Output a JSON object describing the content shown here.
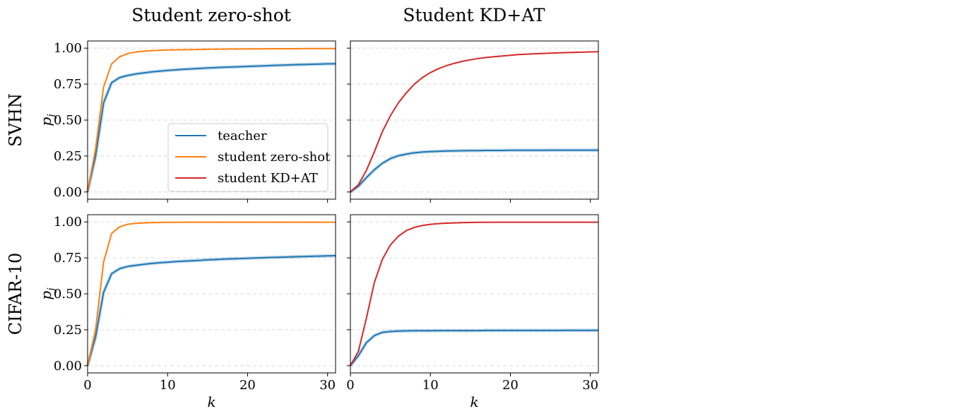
{
  "column_titles": [
    "Student zero-shot",
    "Student KD+AT"
  ],
  "row_labels": [
    "SVHN",
    "CIFAR-10"
  ],
  "legend": [
    {
      "label": "teacher",
      "color": "#1f77b4"
    },
    {
      "label": "student zero-shot",
      "color": "#ff7f0e"
    },
    {
      "label": "student KD+AT",
      "color": "#d62728"
    }
  ],
  "chart_data": [
    {
      "type": "line",
      "panel": "SVHN / Student zero-shot",
      "xlabel": "k",
      "ylabel": "p_j",
      "xlim": [
        0,
        31
      ],
      "ylim": [
        -0.05,
        1.05
      ],
      "xticks": [
        0,
        10,
        20,
        30
      ],
      "yticks": [
        "0.00",
        "0.25",
        "0.50",
        "0.75",
        "1.00"
      ],
      "grid": "horizontal dashed",
      "legend_position": "lower right",
      "x": [
        0,
        1,
        2,
        3,
        4,
        5,
        6,
        7,
        8,
        9,
        10,
        11,
        12,
        13,
        14,
        15,
        16,
        17,
        18,
        19,
        20,
        21,
        22,
        23,
        24,
        25,
        26,
        27,
        28,
        29,
        30,
        31
      ],
      "series": [
        {
          "name": "teacher",
          "color": "#1f77b4",
          "values": [
            0,
            0.25,
            0.62,
            0.76,
            0.795,
            0.81,
            0.82,
            0.828,
            0.835,
            0.84,
            0.845,
            0.849,
            0.853,
            0.856,
            0.859,
            0.862,
            0.865,
            0.867,
            0.869,
            0.871,
            0.873,
            0.875,
            0.877,
            0.879,
            0.881,
            0.883,
            0.885,
            0.886,
            0.888,
            0.889,
            0.891,
            0.892
          ]
        },
        {
          "name": "student zero-shot",
          "color": "#ff7f0e",
          "values": [
            0,
            0.3,
            0.73,
            0.89,
            0.94,
            0.962,
            0.973,
            0.979,
            0.983,
            0.985,
            0.987,
            0.988,
            0.989,
            0.99,
            0.991,
            0.992,
            0.993,
            0.993,
            0.994,
            0.994,
            0.995,
            0.995,
            0.995,
            0.996,
            0.996,
            0.996,
            0.996,
            0.997,
            0.997,
            0.997,
            0.997,
            0.997
          ]
        }
      ]
    },
    {
      "type": "line",
      "panel": "SVHN / Student KD+AT",
      "xlabel": "",
      "ylabel": "",
      "xlim": [
        0,
        31
      ],
      "ylim": [
        -0.05,
        1.05
      ],
      "xticks": [
        0,
        10,
        20,
        30
      ],
      "grid": "horizontal dashed",
      "x": [
        0,
        1,
        2,
        3,
        4,
        5,
        6,
        7,
        8,
        9,
        10,
        11,
        12,
        13,
        14,
        15,
        16,
        17,
        18,
        19,
        20,
        21,
        22,
        23,
        24,
        25,
        26,
        27,
        28,
        29,
        30,
        31
      ],
      "series": [
        {
          "name": "teacher",
          "color": "#1f77b4",
          "values": [
            0,
            0.04,
            0.1,
            0.155,
            0.2,
            0.232,
            0.252,
            0.264,
            0.272,
            0.278,
            0.281,
            0.283,
            0.285,
            0.286,
            0.287,
            0.288,
            0.288,
            0.289,
            0.289,
            0.289,
            0.29,
            0.29,
            0.29,
            0.29,
            0.29,
            0.291,
            0.291,
            0.291,
            0.291,
            0.291,
            0.291,
            0.291
          ]
        },
        {
          "name": "student KD+AT",
          "color": "#d62728",
          "values": [
            0,
            0.05,
            0.15,
            0.28,
            0.42,
            0.53,
            0.62,
            0.69,
            0.75,
            0.795,
            0.83,
            0.857,
            0.878,
            0.895,
            0.908,
            0.919,
            0.928,
            0.935,
            0.941,
            0.946,
            0.951,
            0.955,
            0.958,
            0.961,
            0.963,
            0.965,
            0.967,
            0.969,
            0.971,
            0.972,
            0.974,
            0.975
          ]
        }
      ]
    },
    {
      "type": "line",
      "panel": "CIFAR-10 / Student zero-shot",
      "xlabel": "k",
      "ylabel": "p_j",
      "xlim": [
        0,
        31
      ],
      "ylim": [
        -0.05,
        1.05
      ],
      "xticks": [
        0,
        10,
        20,
        30
      ],
      "yticks": [
        "0.00",
        "0.25",
        "0.50",
        "0.75",
        "1.00"
      ],
      "grid": "horizontal dashed",
      "x": [
        0,
        1,
        2,
        3,
        4,
        5,
        6,
        7,
        8,
        9,
        10,
        11,
        12,
        13,
        14,
        15,
        16,
        17,
        18,
        19,
        20,
        21,
        22,
        23,
        24,
        25,
        26,
        27,
        28,
        29,
        30,
        31
      ],
      "series": [
        {
          "name": "teacher",
          "color": "#1f77b4",
          "values": [
            0,
            0.2,
            0.51,
            0.64,
            0.675,
            0.69,
            0.698,
            0.705,
            0.711,
            0.716,
            0.72,
            0.724,
            0.727,
            0.73,
            0.733,
            0.736,
            0.738,
            0.741,
            0.743,
            0.745,
            0.747,
            0.749,
            0.751,
            0.753,
            0.754,
            0.756,
            0.758,
            0.759,
            0.761,
            0.762,
            0.764,
            0.765
          ]
        },
        {
          "name": "student zero-shot",
          "color": "#ff7f0e",
          "values": [
            0,
            0.25,
            0.72,
            0.92,
            0.965,
            0.983,
            0.99,
            0.993,
            0.995,
            0.996,
            0.997,
            0.997,
            0.998,
            0.998,
            0.998,
            0.998,
            0.998,
            0.998,
            0.998,
            0.998,
            0.998,
            0.998,
            0.998,
            0.998,
            0.998,
            0.998,
            0.998,
            0.998,
            0.998,
            0.998,
            0.998,
            0.998
          ]
        }
      ]
    },
    {
      "type": "line",
      "panel": "CIFAR-10 / Student KD+AT",
      "xlabel": "k",
      "ylabel": "",
      "xlim": [
        0,
        31
      ],
      "ylim": [
        -0.05,
        1.05
      ],
      "xticks": [
        0,
        10,
        20,
        30
      ],
      "grid": "horizontal dashed",
      "x": [
        0,
        1,
        2,
        3,
        4,
        5,
        6,
        7,
        8,
        9,
        10,
        11,
        12,
        13,
        14,
        15,
        16,
        17,
        18,
        19,
        20,
        21,
        22,
        23,
        24,
        25,
        26,
        27,
        28,
        29,
        30,
        31
      ],
      "series": [
        {
          "name": "teacher",
          "color": "#1f77b4",
          "values": [
            0,
            0.07,
            0.16,
            0.21,
            0.232,
            0.238,
            0.241,
            0.242,
            0.243,
            0.243,
            0.243,
            0.244,
            0.244,
            0.244,
            0.244,
            0.244,
            0.244,
            0.245,
            0.245,
            0.245,
            0.245,
            0.245,
            0.245,
            0.245,
            0.245,
            0.245,
            0.245,
            0.246,
            0.246,
            0.246,
            0.246,
            0.246
          ]
        },
        {
          "name": "student KD+AT",
          "color": "#d62728",
          "values": [
            0,
            0.1,
            0.33,
            0.58,
            0.74,
            0.84,
            0.9,
            0.94,
            0.962,
            0.975,
            0.983,
            0.988,
            0.991,
            0.993,
            0.995,
            0.996,
            0.997,
            0.997,
            0.998,
            0.998,
            0.998,
            0.998,
            0.998,
            0.998,
            0.998,
            0.998,
            0.998,
            0.998,
            0.998,
            0.998,
            0.998,
            0.998
          ]
        }
      ]
    }
  ]
}
